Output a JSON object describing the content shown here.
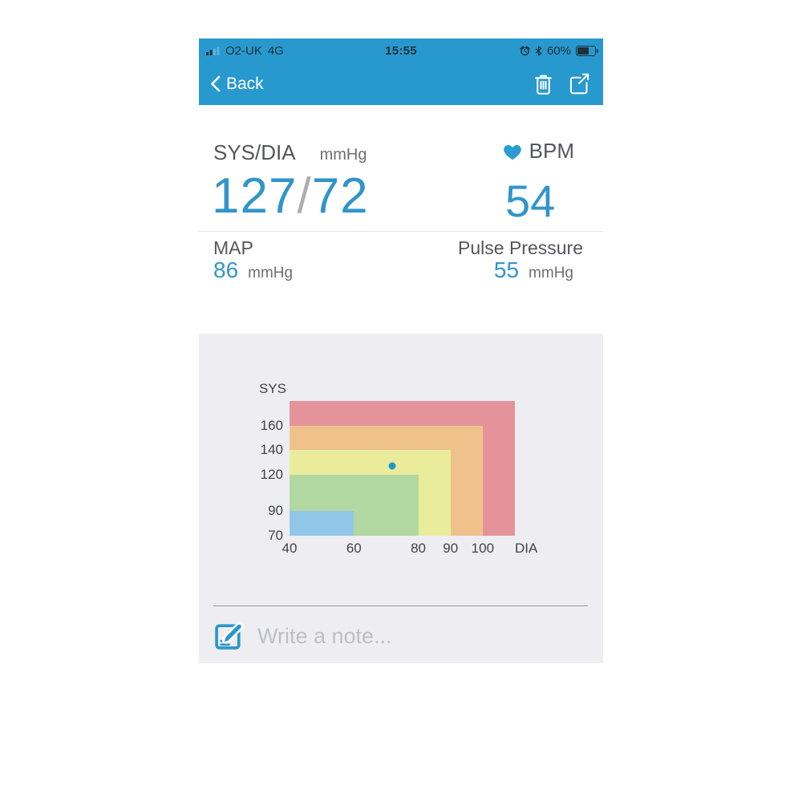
{
  "status_bar": {
    "carrier": "O2-UK",
    "network": "4G",
    "time": "15:55",
    "battery_text": "60%",
    "battery_fill_percent": 60
  },
  "nav": {
    "back_label": "Back"
  },
  "reading": {
    "sys_dia_label": "SYS/DIA",
    "sys_dia_unit": "mmHg",
    "sys_value": "127",
    "separator": "/",
    "dia_value": "72",
    "bpm_label": "BPM",
    "bpm_value": "54",
    "map_label": "MAP",
    "map_value": "86",
    "map_unit": "mmHg",
    "pulse_pressure_label": "Pulse Pressure",
    "pulse_pressure_value": "55",
    "pulse_pressure_unit": "mmHg"
  },
  "note": {
    "placeholder": "Write a note..."
  },
  "chart_data": {
    "type": "scatter",
    "xlabel": "DIA",
    "ylabel": "SYS",
    "xlim": [
      40,
      110
    ],
    "ylim": [
      70,
      180
    ],
    "x_ticks": [
      40,
      60,
      80,
      90,
      100
    ],
    "y_ticks": [
      70,
      90,
      120,
      140,
      160
    ],
    "zones": [
      {
        "name": "red",
        "dia_max": 110,
        "sys_max": 180,
        "color": "#e5939a"
      },
      {
        "name": "orange",
        "dia_max": 100,
        "sys_max": 160,
        "color": "#efc28c"
      },
      {
        "name": "yellow",
        "dia_max": 90,
        "sys_max": 140,
        "color": "#e9ec9b"
      },
      {
        "name": "green",
        "dia_max": 80,
        "sys_max": 120,
        "color": "#b2d8a2"
      },
      {
        "name": "blue",
        "dia_max": 60,
        "sys_max": 90,
        "color": "#92c6e8"
      }
    ],
    "points": [
      {
        "dia": 72,
        "sys": 127,
        "color": "#2196cc"
      }
    ],
    "grid": false,
    "legend": false,
    "background": "#eeeef2"
  },
  "colors": {
    "header_blue": "#2899ce",
    "value_blue": "#3095cb",
    "accent_blue": "#2c96cc",
    "status_dark": "#1e3038",
    "panel_gray": "#eeeef2"
  }
}
